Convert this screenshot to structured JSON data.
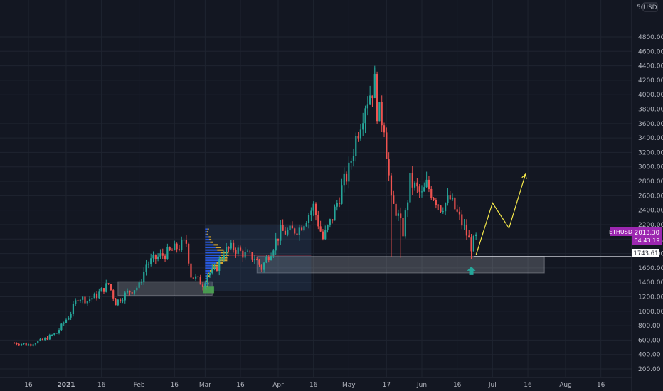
{
  "chart_data": {
    "type": "candlestick",
    "symbol": "ETHUSD",
    "currency": "USD",
    "last_price": "2013.30",
    "countdown": "04:43:19",
    "crosshair_price": "1743.61",
    "top_axis_partial": "50",
    "ylim": [
      150,
      5050
    ],
    "y_ticks": [
      "4800.00",
      "4600.00",
      "4400.00",
      "4200.00",
      "4000.00",
      "3800.00",
      "3600.00",
      "3400.00",
      "3200.00",
      "3000.00",
      "2800.00",
      "2600.00",
      "2400.00",
      "2200.00",
      "2000.00",
      "1800.00",
      "1600.00",
      "1400.00",
      "1200.00",
      "1000.00",
      "800.00",
      "600.00",
      "400.00",
      "200.00"
    ],
    "x_ticks": [
      {
        "label": "16",
        "date": "2020-12-16"
      },
      {
        "label": "2021",
        "date": "2021-01-01",
        "bold": true
      },
      {
        "label": "16",
        "date": "2021-01-16"
      },
      {
        "label": "Feb",
        "date": "2021-02-01"
      },
      {
        "label": "16",
        "date": "2021-02-16"
      },
      {
        "label": "Mar",
        "date": "2021-03-01"
      },
      {
        "label": "16",
        "date": "2021-03-16"
      },
      {
        "label": "Apr",
        "date": "2021-04-01"
      },
      {
        "label": "16",
        "date": "2021-04-16"
      },
      {
        "label": "May",
        "date": "2021-05-01"
      },
      {
        "label": "17",
        "date": "2021-05-17"
      },
      {
        "label": "Jun",
        "date": "2021-06-01"
      },
      {
        "label": "16",
        "date": "2021-06-16"
      },
      {
        "label": "Jul",
        "date": "2021-07-01"
      },
      {
        "label": "16",
        "date": "2021-07-16"
      },
      {
        "label": "Aug",
        "date": "2021-08-01"
      },
      {
        "label": "16",
        "date": "2021-08-16"
      }
    ],
    "close_path": [
      [
        "2020-12-10",
        560
      ],
      [
        "2020-12-16",
        540
      ],
      [
        "2020-12-22",
        600
      ],
      [
        "2020-12-28",
        700
      ],
      [
        "2021-01-03",
        980
      ],
      [
        "2021-01-06",
        1200
      ],
      [
        "2021-01-10",
        1150
      ],
      [
        "2021-01-14",
        1220
      ],
      [
        "2021-01-19",
        1380
      ],
      [
        "2021-01-22",
        1120
      ],
      [
        "2021-01-27",
        1260
      ],
      [
        "2021-02-01",
        1350
      ],
      [
        "2021-02-04",
        1650
      ],
      [
        "2021-02-09",
        1750
      ],
      [
        "2021-02-14",
        1820
      ],
      [
        "2021-02-18",
        1900
      ],
      [
        "2021-02-21",
        1950
      ],
      [
        "2021-02-23",
        1500
      ],
      [
        "2021-02-28",
        1380
      ],
      [
        "2021-03-02",
        1520
      ],
      [
        "2021-03-05",
        1550
      ],
      [
        "2021-03-09",
        1830
      ],
      [
        "2021-03-13",
        1880
      ],
      [
        "2021-03-18",
        1780
      ],
      [
        "2021-03-22",
        1740
      ],
      [
        "2021-03-25",
        1600
      ],
      [
        "2021-03-29",
        1850
      ],
      [
        "2021-04-02",
        2100
      ],
      [
        "2021-04-06",
        2100
      ],
      [
        "2021-04-10",
        2150
      ],
      [
        "2021-04-13",
        2300
      ],
      [
        "2021-04-16",
        2450
      ],
      [
        "2021-04-20",
        2000
      ],
      [
        "2021-04-24",
        2300
      ],
      [
        "2021-04-28",
        2700
      ],
      [
        "2021-05-01",
        2950
      ],
      [
        "2021-05-04",
        3400
      ],
      [
        "2021-05-08",
        3900
      ],
      [
        "2021-05-12",
        4150
      ],
      [
        "2021-05-13",
        3800
      ],
      [
        "2021-05-16",
        3600
      ],
      [
        "2021-05-19",
        2500
      ],
      [
        "2021-05-21",
        2400
      ],
      [
        "2021-05-24",
        2100
      ],
      [
        "2021-05-27",
        2800
      ],
      [
        "2021-06-01",
        2600
      ],
      [
        "2021-06-03",
        2750
      ],
      [
        "2021-06-06",
        2600
      ],
      [
        "2021-06-09",
        2450
      ],
      [
        "2021-06-13",
        2550
      ],
      [
        "2021-06-16",
        2350
      ],
      [
        "2021-06-19",
        2150
      ],
      [
        "2021-06-22",
        1900
      ],
      [
        "2021-06-24",
        2013
      ]
    ],
    "projection": [
      [
        "2021-06-24",
        1780
      ],
      [
        "2021-07-01",
        2500
      ],
      [
        "2021-07-08",
        2150
      ],
      [
        "2021-07-15",
        2900
      ]
    ],
    "zones": [
      {
        "from": "2021-01-23",
        "to": "2021-03-04",
        "low": 1220,
        "high": 1410
      },
      {
        "from": "2021-03-23",
        "to": "2021-07-23",
        "low": 1530,
        "high": 1760
      },
      {
        "from": "2021-03-01",
        "to": "2021-04-15",
        "low": 1280,
        "high": 2190
      }
    ],
    "poc_line": {
      "from": "2021-03-10",
      "to": "2021-04-15",
      "price": 1780
    }
  },
  "colors": {
    "background": "#131722",
    "up": "#26a69a",
    "down": "#ef5350",
    "symbol_tag": "#9c27b0",
    "projection": "#f6e94a",
    "poc": "#f23645",
    "zone": "#d1d4dc",
    "arrow": "#26a69a",
    "profile_blue": "#2962ff",
    "profile_yellow": "#fbc02d"
  }
}
